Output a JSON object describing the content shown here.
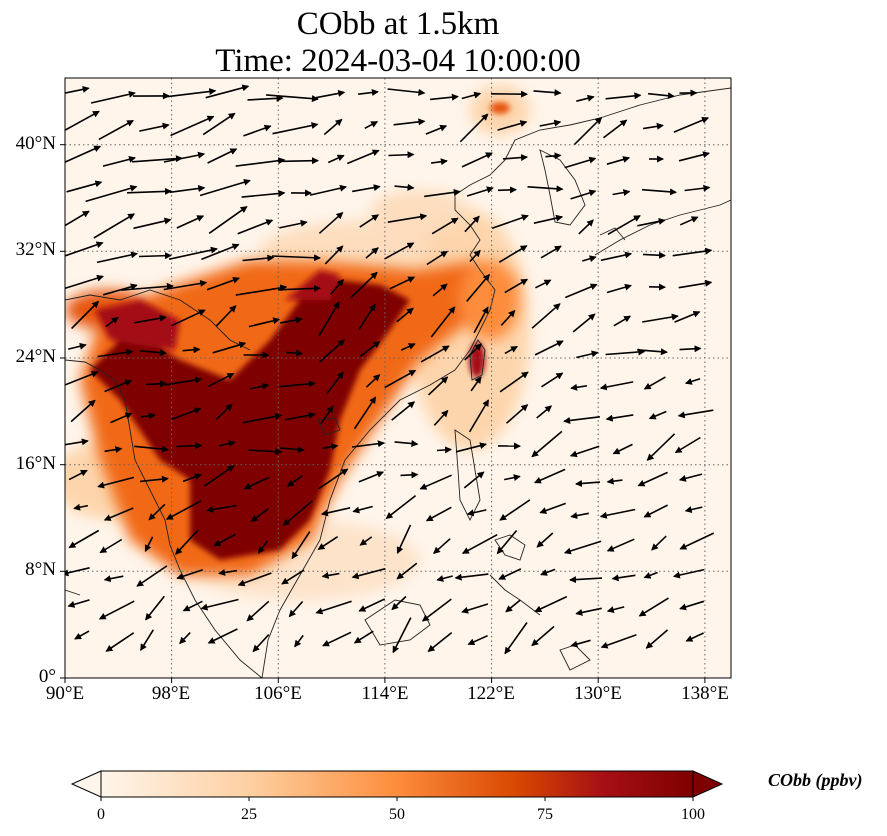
{
  "title_line1": "CObb at 1.5km",
  "title_line2": "Time: 2024-03-04 10:00:00",
  "lat_ticks": [
    "0°",
    "8°N",
    "16°N",
    "24°N",
    "32°N",
    "40°N"
  ],
  "lon_ticks": [
    "90°E",
    "98°E",
    "106°E",
    "114°E",
    "122°E",
    "130°E",
    "138°E"
  ],
  "colorbar": {
    "label": "CObb (ppbv)",
    "ticks": [
      "0",
      "25",
      "50",
      "75",
      "100"
    ],
    "colors": [
      "#fff5eb",
      "#fdd0a2",
      "#fd8d3c",
      "#d94801",
      "#a50f15",
      "#7f0000"
    ]
  },
  "map_colors": {
    "land_line": "#222222",
    "grid": "#666666",
    "arrow": "#000000"
  }
}
